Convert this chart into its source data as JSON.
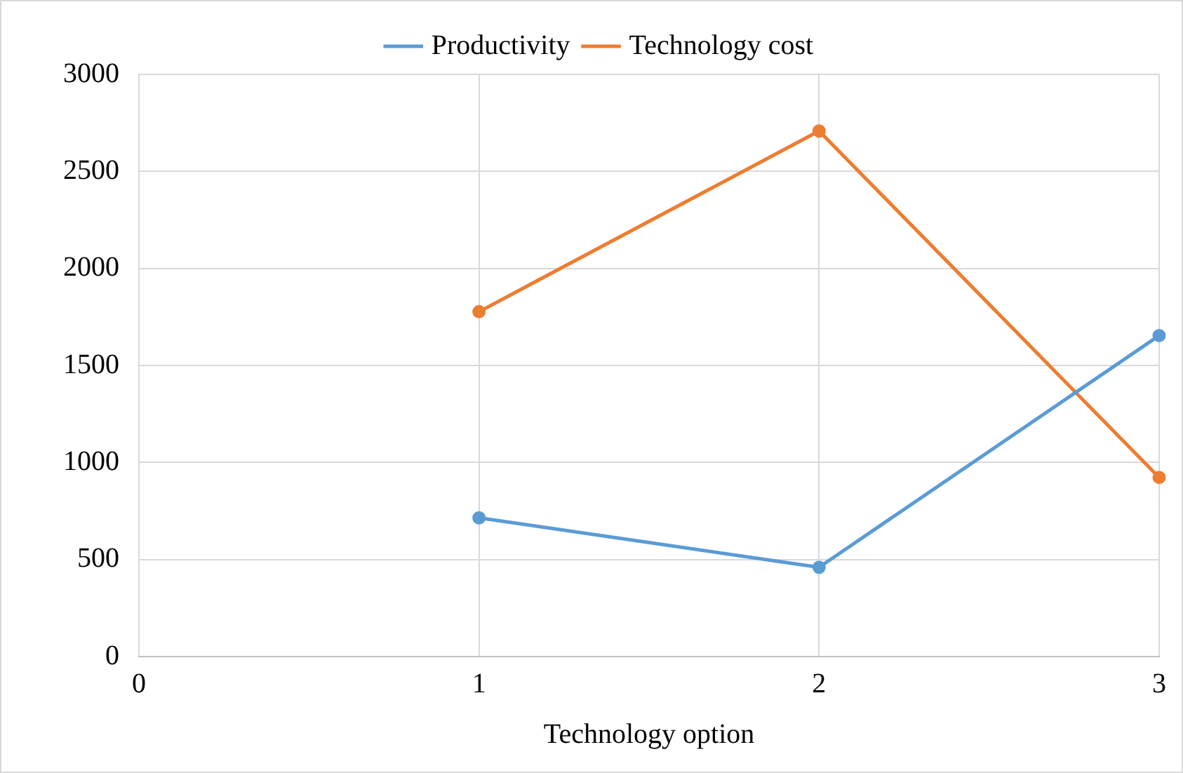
{
  "chart_data": {
    "type": "line",
    "xlabel": "Technology option",
    "x": [
      1,
      2,
      3
    ],
    "xlim": [
      0,
      3
    ],
    "xticks": [
      0,
      1,
      2,
      3
    ],
    "ylim": [
      0,
      3000
    ],
    "yticks": [
      0,
      500,
      1000,
      1500,
      2000,
      2500,
      3000
    ],
    "grid": true,
    "legend": "top",
    "marker": "circle",
    "line_style": "solid",
    "series": [
      {
        "name": "Productivity",
        "color": "#5b9bd5",
        "values": [
          715,
          460,
          1654
        ]
      },
      {
        "name": "Technology cost",
        "color": "#ed7d31",
        "values": [
          1777,
          2708,
          923
        ]
      }
    ]
  }
}
